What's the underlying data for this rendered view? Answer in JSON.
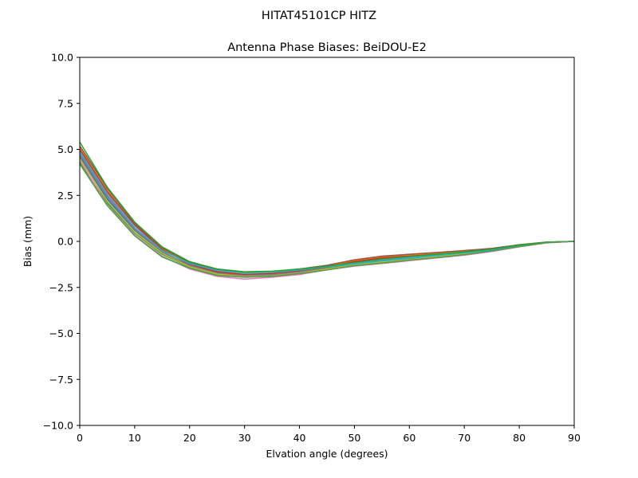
{
  "figure": {
    "suptitle": "HITAT45101CP    HITZ"
  },
  "chart_data": {
    "type": "line",
    "title": "Antenna Phase Biases: BeiDOU-E2",
    "xlabel": "Elvation angle (degrees)",
    "ylabel": "Bias (mm)",
    "xlim": [
      0,
      90
    ],
    "ylim": [
      -10,
      10
    ],
    "xticks": [
      0,
      10,
      20,
      30,
      40,
      50,
      60,
      70,
      80,
      90
    ],
    "xtick_labels": [
      "0",
      "10",
      "20",
      "30",
      "40",
      "50",
      "60",
      "70",
      "80",
      "90"
    ],
    "yticks": [
      10,
      7.5,
      5,
      2.5,
      0,
      -2.5,
      -5,
      -7.5,
      -10
    ],
    "ytick_labels": [
      "10.0",
      "7.5",
      "5.0",
      "2.5",
      "0.0",
      "−2.5",
      "−5.0",
      "−7.5",
      "−10.0"
    ],
    "grid": false,
    "legend": "none",
    "x": [
      0,
      5,
      10,
      15,
      20,
      25,
      30,
      35,
      40,
      45,
      50,
      55,
      60,
      65,
      70,
      75,
      80,
      85,
      90
    ],
    "series": [
      {
        "color": "#1f77b4",
        "values": [
          4.6,
          2.3,
          0.6,
          -0.6,
          -1.3,
          -1.7,
          -1.85,
          -1.8,
          -1.65,
          -1.45,
          -1.25,
          -1.1,
          -0.95,
          -0.85,
          -0.7,
          -0.5,
          -0.25,
          -0.05,
          0.0
        ]
      },
      {
        "color": "#ff7f0e",
        "values": [
          5.1,
          2.8,
          0.95,
          -0.4,
          -1.2,
          -1.6,
          -1.75,
          -1.7,
          -1.55,
          -1.35,
          -1.05,
          -0.85,
          -0.75,
          -0.65,
          -0.55,
          -0.4,
          -0.2,
          -0.05,
          0.0
        ]
      },
      {
        "color": "#2ca02c",
        "values": [
          4.3,
          2.1,
          0.45,
          -0.7,
          -1.4,
          -1.8,
          -1.9,
          -1.85,
          -1.7,
          -1.5,
          -1.3,
          -1.15,
          -1.0,
          -0.85,
          -0.7,
          -0.5,
          -0.25,
          -0.05,
          0.0
        ]
      },
      {
        "color": "#d62728",
        "values": [
          5.0,
          2.7,
          0.9,
          -0.45,
          -1.25,
          -1.65,
          -1.8,
          -1.75,
          -1.6,
          -1.4,
          -1.1,
          -0.9,
          -0.8,
          -0.7,
          -0.6,
          -0.45,
          -0.22,
          -0.05,
          0.0
        ]
      },
      {
        "color": "#9467bd",
        "values": [
          4.8,
          2.5,
          0.7,
          -0.55,
          -1.35,
          -1.75,
          -1.9,
          -1.85,
          -1.7,
          -1.5,
          -1.2,
          -1.0,
          -0.85,
          -0.75,
          -0.62,
          -0.45,
          -0.23,
          -0.05,
          0.0
        ]
      },
      {
        "color": "#8c564b",
        "values": [
          5.2,
          2.9,
          1.0,
          -0.35,
          -1.15,
          -1.55,
          -1.7,
          -1.65,
          -1.5,
          -1.3,
          -1.0,
          -0.8,
          -0.7,
          -0.6,
          -0.5,
          -0.38,
          -0.18,
          -0.04,
          0.0
        ]
      },
      {
        "color": "#e377c2",
        "values": [
          4.4,
          2.0,
          0.35,
          -0.8,
          -1.5,
          -1.9,
          -2.05,
          -1.95,
          -1.8,
          -1.55,
          -1.35,
          -1.2,
          -1.05,
          -0.9,
          -0.75,
          -0.55,
          -0.3,
          -0.08,
          0.0
        ]
      },
      {
        "color": "#7f7f7f",
        "values": [
          4.7,
          2.4,
          0.65,
          -0.6,
          -1.3,
          -1.72,
          -1.85,
          -1.8,
          -1.65,
          -1.45,
          -1.2,
          -1.0,
          -0.9,
          -0.78,
          -0.65,
          -0.48,
          -0.24,
          -0.05,
          0.0
        ]
      },
      {
        "color": "#bcbd22",
        "values": [
          4.5,
          2.2,
          0.5,
          -0.65,
          -1.38,
          -1.78,
          -1.92,
          -1.87,
          -1.72,
          -1.5,
          -1.28,
          -1.12,
          -0.98,
          -0.84,
          -0.68,
          -0.5,
          -0.26,
          -0.06,
          0.0
        ]
      },
      {
        "color": "#17becf",
        "values": [
          4.9,
          2.6,
          0.8,
          -0.5,
          -1.2,
          -1.58,
          -1.72,
          -1.68,
          -1.55,
          -1.38,
          -1.22,
          -1.05,
          -0.9,
          -0.76,
          -0.62,
          -0.46,
          -0.22,
          -0.05,
          0.0
        ]
      },
      {
        "color": "#2ca02c",
        "values": [
          5.4,
          2.95,
          1.05,
          -0.3,
          -1.1,
          -1.5,
          -1.65,
          -1.62,
          -1.5,
          -1.35,
          -1.15,
          -0.95,
          -0.82,
          -0.7,
          -0.58,
          -0.42,
          -0.2,
          -0.04,
          0.0
        ]
      },
      {
        "color": "#4c9e4c",
        "values": [
          4.2,
          1.95,
          0.3,
          -0.85,
          -1.45,
          -1.85,
          -1.95,
          -1.9,
          -1.75,
          -1.55,
          -1.32,
          -1.18,
          -1.02,
          -0.88,
          -0.72,
          -0.52,
          -0.28,
          -0.07,
          0.0
        ]
      }
    ]
  }
}
